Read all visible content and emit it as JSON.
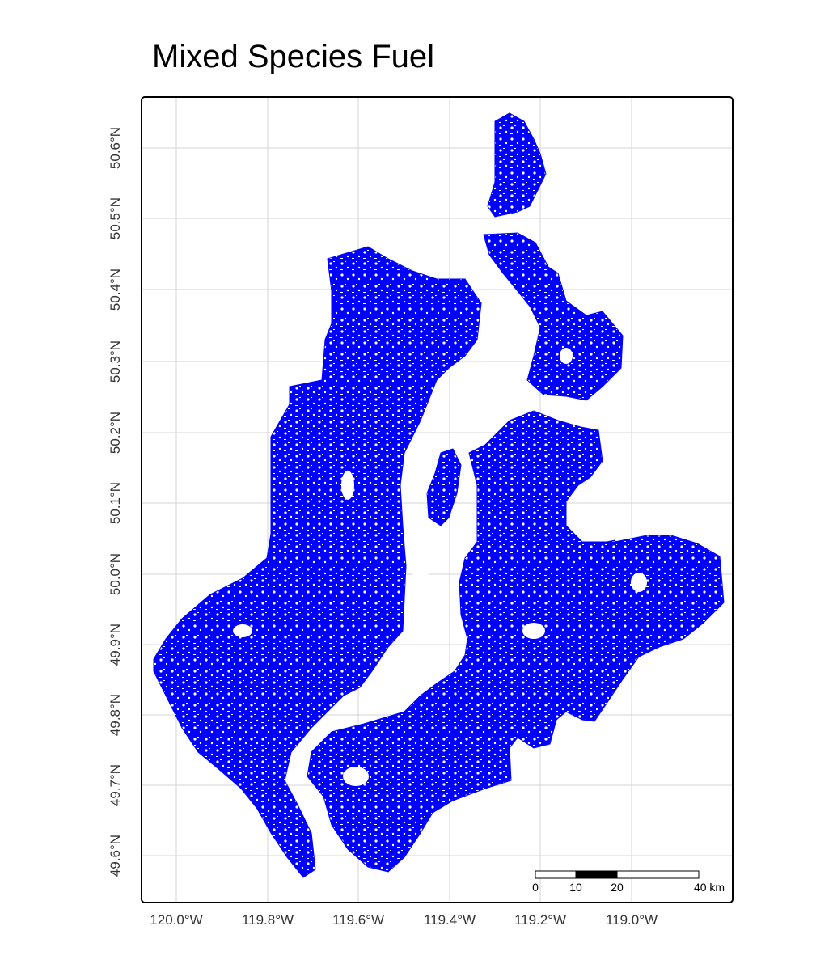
{
  "title": "Mixed Species Fuel",
  "colors": {
    "fuel": "#0000ff",
    "grid": "#d4d4d4",
    "frame": "#000000",
    "background": "#ffffff"
  },
  "axes": {
    "x_ticks": [
      "120.0°W",
      "119.8°W",
      "119.6°W",
      "119.4°W",
      "119.2°W",
      "119.0°W"
    ],
    "y_ticks": [
      "49.6°N",
      "49.7°N",
      "49.8°N",
      "49.9°N",
      "50.0°N",
      "50.1°N",
      "50.2°N",
      "50.3°N",
      "50.4°N",
      "50.5°N",
      "50.6°N"
    ]
  },
  "scale_bar": {
    "labels": [
      "0",
      "10",
      "20",
      "40 km"
    ]
  },
  "legend": {
    "fuel_type": "Mixed Species Fuel"
  }
}
